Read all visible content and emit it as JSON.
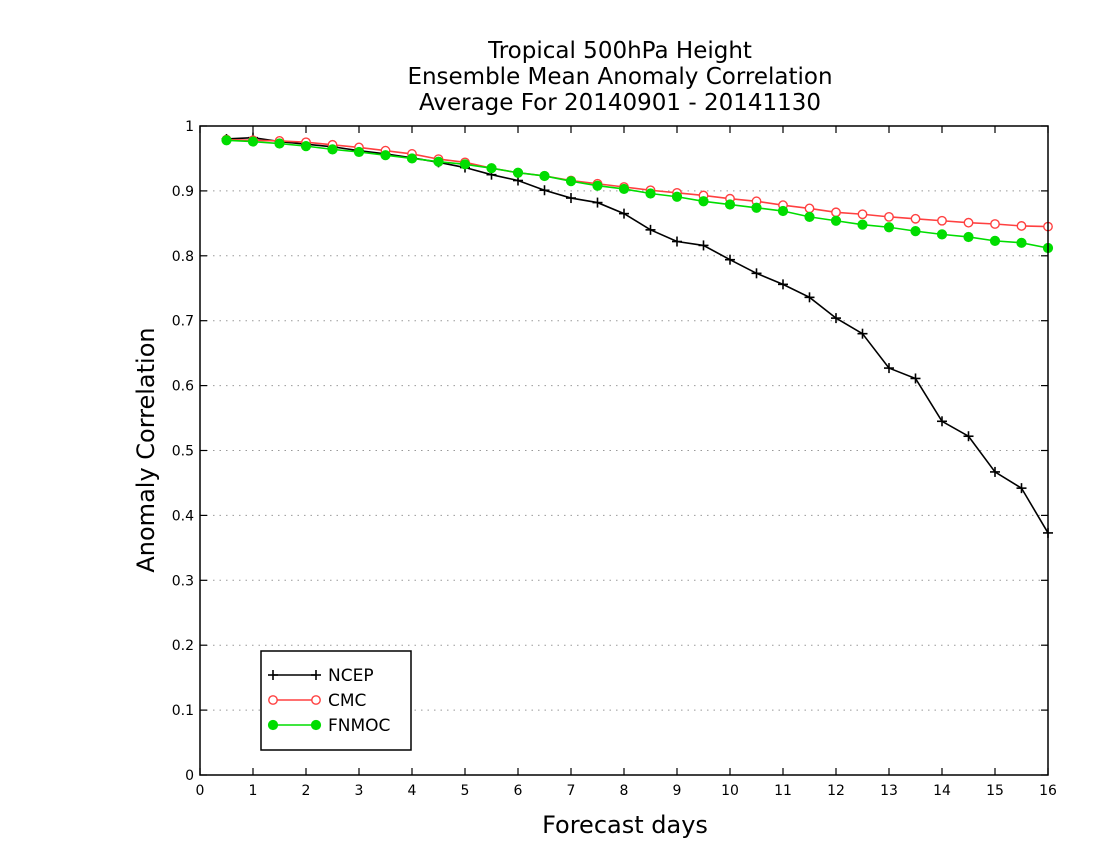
{
  "chart_data": {
    "type": "line",
    "title_lines": [
      "Tropical 500hPa Height",
      "Ensemble Mean Anomaly Correlation",
      "Average For 20140901 - 20141130"
    ],
    "xlabel": "Forecast days",
    "ylabel": "Anomaly Correlation",
    "xlim": [
      0,
      16
    ],
    "ylim": [
      0,
      1
    ],
    "x_ticks": [
      "0",
      "1",
      "2",
      "3",
      "4",
      "5",
      "6",
      "7",
      "8",
      "9",
      "10",
      "11",
      "12",
      "13",
      "14",
      "15",
      "16"
    ],
    "y_ticks": [
      "0",
      "0.1",
      "0.2",
      "0.3",
      "0.4",
      "0.5",
      "0.6",
      "0.7",
      "0.8",
      "0.9",
      "1"
    ],
    "grid": "horizontal-dotted",
    "legend_position": "bottom-left",
    "x": [
      0.5,
      1,
      1.5,
      2,
      2.5,
      3,
      3.5,
      4,
      4.5,
      5,
      5.5,
      6,
      6.5,
      7,
      7.5,
      8,
      8.5,
      9,
      9.5,
      10,
      10.5,
      11,
      11.5,
      12,
      12.5,
      13,
      13.5,
      14,
      14.5,
      15,
      15.5,
      16
    ],
    "series": [
      {
        "name": "NCEP",
        "color": "#000000",
        "marker": "plus",
        "values": [
          0.98,
          0.982,
          0.976,
          0.972,
          0.968,
          0.962,
          0.957,
          0.951,
          0.944,
          0.936,
          0.925,
          0.916,
          0.901,
          0.889,
          0.882,
          0.865,
          0.84,
          0.822,
          0.816,
          0.794,
          0.773,
          0.756,
          0.736,
          0.704,
          0.68,
          0.627,
          0.611,
          0.545,
          0.522,
          0.467,
          0.442,
          0.373
        ]
      },
      {
        "name": "CMC",
        "color": "#ff4040",
        "marker": "open-circle",
        "values": [
          0.979,
          0.978,
          0.977,
          0.975,
          0.971,
          0.967,
          0.962,
          0.957,
          0.949,
          0.944,
          0.935,
          0.928,
          0.923,
          0.916,
          0.911,
          0.906,
          0.901,
          0.897,
          0.893,
          0.888,
          0.884,
          0.878,
          0.873,
          0.867,
          0.864,
          0.86,
          0.857,
          0.854,
          0.851,
          0.849,
          0.846,
          0.845
        ]
      },
      {
        "name": "FNMOC",
        "color": "#00dd00",
        "marker": "filled-circle",
        "values": [
          0.978,
          0.976,
          0.973,
          0.969,
          0.964,
          0.96,
          0.955,
          0.95,
          0.945,
          0.941,
          0.935,
          0.928,
          0.923,
          0.915,
          0.908,
          0.903,
          0.896,
          0.891,
          0.884,
          0.879,
          0.874,
          0.869,
          0.86,
          0.854,
          0.848,
          0.844,
          0.838,
          0.833,
          0.829,
          0.823,
          0.82,
          0.812
        ]
      }
    ]
  }
}
